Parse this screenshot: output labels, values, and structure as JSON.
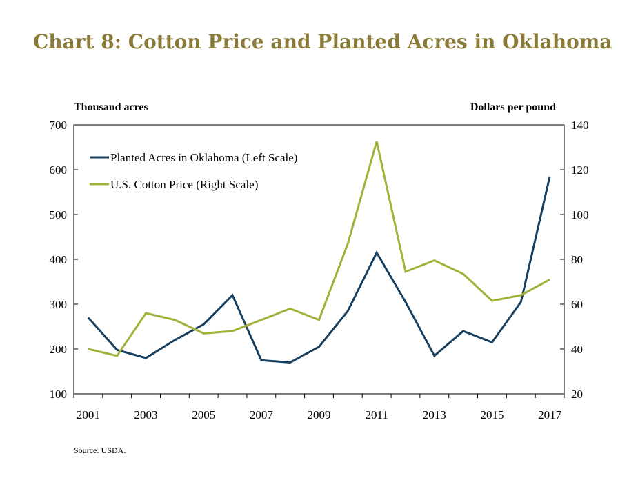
{
  "chart_data": {
    "type": "line",
    "title": "Chart 8: Cotton Price and Planted Acres in Oklahoma",
    "ylabel_left": "Thousand acres",
    "ylabel_right": "Dollars per pound",
    "source": "Source: USDA.",
    "x": [
      2001,
      2002,
      2003,
      2004,
      2005,
      2006,
      2007,
      2008,
      2009,
      2010,
      2011,
      2012,
      2013,
      2014,
      2015,
      2016,
      2017
    ],
    "x_tick_labels": [
      "2001",
      "2003",
      "2005",
      "2007",
      "2009",
      "2011",
      "2013",
      "2015",
      "2017"
    ],
    "ylim_left": [
      100,
      700
    ],
    "ylim_right": [
      20,
      140
    ],
    "y_left_ticks": [
      "100",
      "200",
      "300",
      "400",
      "500",
      "600",
      "700"
    ],
    "y_right_ticks": [
      "20",
      "40",
      "60",
      "80",
      "100",
      "120",
      "140"
    ],
    "legend_position": "top-left",
    "series": [
      {
        "name": "Planted Acres in Oklahoma (Left Scale)",
        "axis": "left",
        "color": "#173f5f",
        "values": [
          270,
          198,
          180,
          220,
          255,
          320,
          175,
          170,
          205,
          285,
          415,
          305,
          185,
          240,
          215,
          305,
          585
        ]
      },
      {
        "name": "U.S. Cotton Price (Right Scale)",
        "axis": "right",
        "color": "#a3b13a",
        "values": [
          40,
          37,
          56,
          53,
          47,
          48,
          53,
          58,
          53,
          87,
          132.6,
          74.5,
          79.5,
          73.5,
          61.5,
          64,
          71
        ]
      }
    ]
  }
}
